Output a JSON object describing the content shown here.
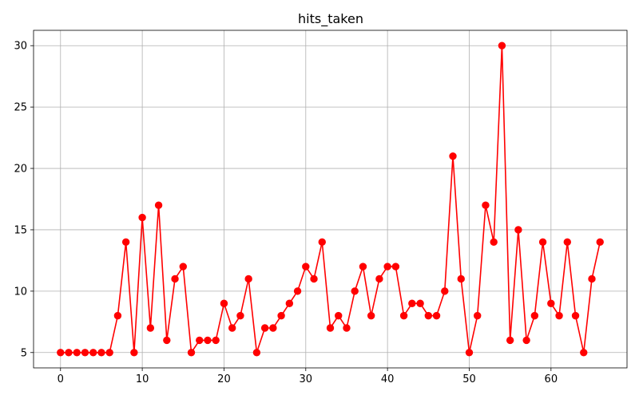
{
  "chart_data": {
    "type": "line",
    "title": "hits_taken",
    "xlabel": "",
    "ylabel": "",
    "xlim": [
      -3.3,
      69.3
    ],
    "ylim": [
      3.75,
      31.25
    ],
    "x_ticks": [
      0,
      10,
      20,
      30,
      40,
      50,
      60
    ],
    "y_ticks": [
      5,
      10,
      15,
      20,
      25,
      30
    ],
    "x_tick_labels": [
      "0",
      "10",
      "20",
      "30",
      "40",
      "50",
      "60"
    ],
    "y_tick_labels": [
      "5",
      "10",
      "15",
      "20",
      "25",
      "30"
    ],
    "grid": true,
    "legend": "none",
    "series": [
      {
        "color": "#ff0000",
        "marker": "circle",
        "x": [
          0,
          1,
          2,
          3,
          4,
          5,
          6,
          7,
          8,
          9,
          10,
          11,
          12,
          13,
          14,
          15,
          16,
          17,
          18,
          19,
          20,
          21,
          22,
          23,
          24,
          25,
          26,
          27,
          28,
          29,
          30,
          31,
          32,
          33,
          34,
          35,
          36,
          37,
          38,
          39,
          40,
          41,
          42,
          43,
          44,
          45,
          46,
          47,
          48,
          49,
          50,
          51,
          52,
          53,
          54,
          55,
          56,
          57,
          58,
          59,
          60,
          61,
          62,
          63,
          64,
          65,
          66
        ],
        "values": [
          5,
          5,
          5,
          5,
          5,
          5,
          5,
          8,
          14,
          5,
          16,
          7,
          17,
          6,
          11,
          12,
          5,
          6,
          6,
          6,
          9,
          7,
          8,
          11,
          5,
          7,
          7,
          8,
          9,
          10,
          12,
          11,
          14,
          7,
          8,
          7,
          10,
          12,
          8,
          11,
          12,
          12,
          8,
          9,
          9,
          8,
          8,
          10,
          21,
          11,
          5,
          8,
          17,
          14,
          30,
          6,
          15,
          6,
          8,
          14,
          9,
          8,
          14,
          8,
          5,
          11,
          14
        ]
      }
    ],
    "colors": {
      "grid": "#b0b0b0",
      "axes": "#000000"
    }
  }
}
